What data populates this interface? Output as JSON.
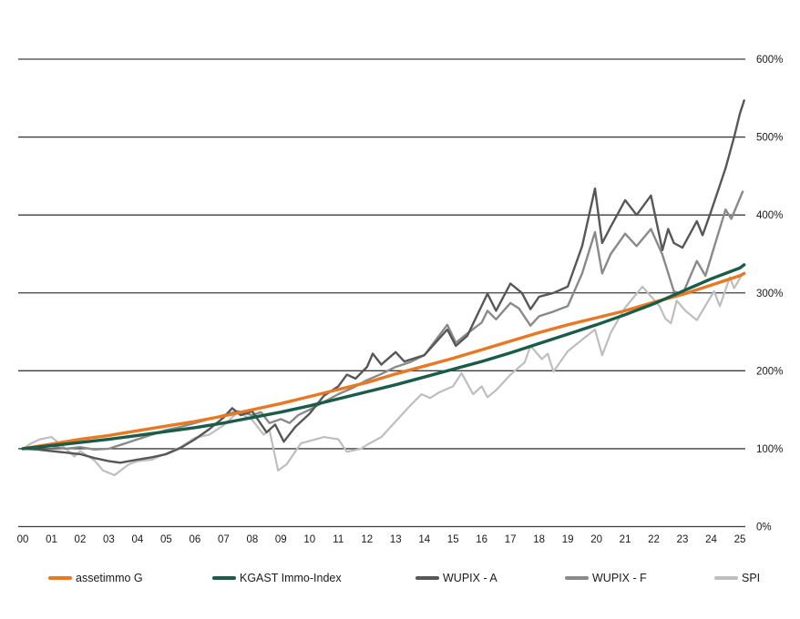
{
  "page": {
    "background": "#ffffff"
  },
  "chart_data": {
    "type": "line",
    "title": "",
    "subtitle": "",
    "grid": {
      "horizontal": true,
      "color": "#3d3d3d",
      "axis_line_color": "#3d3d3d"
    },
    "x_axis": {
      "start_year": 2000,
      "end_year": 2025,
      "ticks": [
        "00",
        "01",
        "02",
        "03",
        "04",
        "05",
        "06",
        "07",
        "08",
        "09",
        "10",
        "11",
        "12",
        "13",
        "14",
        "15",
        "16",
        "17",
        "18",
        "19",
        "20",
        "21",
        "22",
        "23",
        "24",
        "25"
      ]
    },
    "y_axis": {
      "position": "right",
      "min": 0,
      "max": 600,
      "tick_step": 100,
      "tick_labels": [
        "0%",
        "100%",
        "200%",
        "300%",
        "400%",
        "500%",
        "600%"
      ]
    },
    "legend": {
      "position": "bottom"
    },
    "series": [
      {
        "name": "assetimmo G",
        "color": "#E87822",
        "width": 3.4,
        "x": [
          2000,
          2001,
          2002,
          2003,
          2004,
          2005,
          2006,
          2007,
          2008,
          2009,
          2010,
          2011,
          2012,
          2013,
          2014,
          2015,
          2016,
          2017,
          2018,
          2019,
          2020,
          2021,
          2022,
          2023,
          2024,
          2025,
          2025.15
        ],
        "values": [
          100,
          106,
          112,
          117,
          123,
          129,
          135,
          142,
          150,
          158,
          167,
          176,
          185,
          196,
          206,
          216,
          227,
          238,
          249,
          259,
          268,
          277,
          288,
          298,
          310,
          322,
          325
        ]
      },
      {
        "name": "KGAST Immo-Index",
        "color": "#1A5C4A",
        "width": 3.4,
        "x": [
          2000,
          2001,
          2002,
          2003,
          2004,
          2005,
          2006,
          2007,
          2008,
          2009,
          2010,
          2011,
          2012,
          2013,
          2014,
          2015,
          2016,
          2017,
          2018,
          2019,
          2020,
          2021,
          2022,
          2023,
          2024,
          2025,
          2025.15
        ],
        "values": [
          100,
          104,
          108,
          112,
          117,
          122,
          127,
          133,
          140,
          147,
          155,
          164,
          173,
          182,
          192,
          202,
          212,
          223,
          235,
          247,
          259,
          272,
          286,
          302,
          318,
          332,
          336
        ]
      },
      {
        "name": "WUPIX - A",
        "color": "#575757",
        "width": 2.4,
        "x": [
          2000,
          2000.5,
          2001,
          2001.5,
          2002,
          2002.5,
          2003,
          2003.4,
          2004,
          2004.5,
          2005,
          2005.5,
          2006,
          2006.5,
          2007,
          2007.3,
          2007.6,
          2008,
          2008.5,
          2008.8,
          2009.1,
          2009.5,
          2010,
          2010.5,
          2011,
          2011.3,
          2011.6,
          2012,
          2012.2,
          2012.5,
          2013,
          2013.3,
          2014,
          2014.8,
          2015.1,
          2015.5,
          2016.2,
          2016.5,
          2017,
          2017.4,
          2017.7,
          2018,
          2018.5,
          2019,
          2019.5,
          2019.95,
          2020.2,
          2020.5,
          2021,
          2021.4,
          2021.9,
          2022.3,
          2022.5,
          2022.7,
          2023,
          2023.5,
          2023.7,
          2024,
          2024.3,
          2024.5,
          2024.8,
          2025,
          2025.15
        ],
        "values": [
          100,
          99,
          97,
          95,
          93,
          88,
          84,
          82,
          86,
          89,
          93,
          101,
          112,
          125,
          140,
          152,
          143,
          148,
          121,
          131,
          109,
          128,
          145,
          168,
          180,
          195,
          190,
          205,
          222,
          208,
          224,
          212,
          220,
          253,
          232,
          245,
          299,
          277,
          312,
          300,
          279,
          295,
          300,
          308,
          360,
          434,
          364,
          385,
          419,
          400,
          425,
          355,
          382,
          364,
          358,
          392,
          374,
          405,
          438,
          460,
          500,
          530,
          547
        ]
      },
      {
        "name": "WUPIX - F",
        "color": "#8A8A8A",
        "width": 2.4,
        "x": [
          2000,
          2000.5,
          2001,
          2001.5,
          2002,
          2002.5,
          2003,
          2003.5,
          2004,
          2004.5,
          2005,
          2005.5,
          2006,
          2006.5,
          2007,
          2007.5,
          2008,
          2008.3,
          2008.6,
          2009,
          2009.3,
          2009.6,
          2010,
          2010.5,
          2011,
          2011.5,
          2012,
          2012.5,
          2013,
          2013.5,
          2014,
          2014.8,
          2015.1,
          2015.5,
          2016,
          2016.2,
          2016.5,
          2017,
          2017.3,
          2017.7,
          2018,
          2018.5,
          2019,
          2019.5,
          2019.95,
          2020.2,
          2020.5,
          2021,
          2021.4,
          2021.9,
          2022.3,
          2022.7,
          2023,
          2023.5,
          2023.8,
          2024.5,
          2024.7,
          2025.1
        ],
        "values": [
          100,
          102,
          103,
          100,
          102,
          99,
          100,
          106,
          112,
          118,
          124,
          128,
          133,
          138,
          143,
          148,
          143,
          147,
          133,
          138,
          133,
          143,
          150,
          160,
          170,
          178,
          188,
          196,
          205,
          211,
          220,
          259,
          236,
          248,
          262,
          277,
          266,
          287,
          280,
          258,
          270,
          276,
          283,
          325,
          378,
          325,
          350,
          376,
          360,
          382,
          349,
          302,
          298,
          341,
          322,
          407,
          395,
          430
        ]
      },
      {
        "name": "SPI",
        "color": "#BEBEBE",
        "width": 2.2,
        "x": [
          2000,
          2000.3,
          2000.6,
          2001,
          2001.5,
          2001.8,
          2002,
          2002.5,
          2002.8,
          2003.2,
          2003.7,
          2004,
          2004.5,
          2005,
          2005.5,
          2006,
          2006.5,
          2007,
          2007.5,
          2008,
          2008.4,
          2008.6,
          2008.9,
          2009.2,
          2009.7,
          2010,
          2010.5,
          2011,
          2011.3,
          2011.8,
          2012,
          2012.5,
          2013,
          2013.5,
          2013.9,
          2014.2,
          2014.5,
          2015,
          2015.3,
          2015.7,
          2016,
          2016.2,
          2016.5,
          2017,
          2017.5,
          2017.7,
          2018.1,
          2018.3,
          2018.5,
          2019,
          2019.5,
          2019.95,
          2020.2,
          2020.5,
          2021,
          2021.6,
          2022.2,
          2022.4,
          2022.6,
          2022.8,
          2023.1,
          2023.5,
          2024.1,
          2024.3,
          2024.65,
          2024.8,
          2025.1
        ],
        "values": [
          100,
          107,
          112,
          115,
          100,
          90,
          97,
          85,
          72,
          66,
          80,
          84,
          86,
          94,
          102,
          114,
          118,
          130,
          147,
          137,
          118,
          124,
          72,
          80,
          107,
          110,
          115,
          112,
          96,
          100,
          105,
          115,
          135,
          155,
          170,
          165,
          172,
          180,
          197,
          170,
          180,
          166,
          175,
          195,
          211,
          232,
          215,
          222,
          199,
          225,
          240,
          253,
          220,
          249,
          281,
          308,
          283,
          267,
          261,
          290,
          277,
          265,
          302,
          283,
          320,
          306,
          325
        ]
      }
    ]
  }
}
